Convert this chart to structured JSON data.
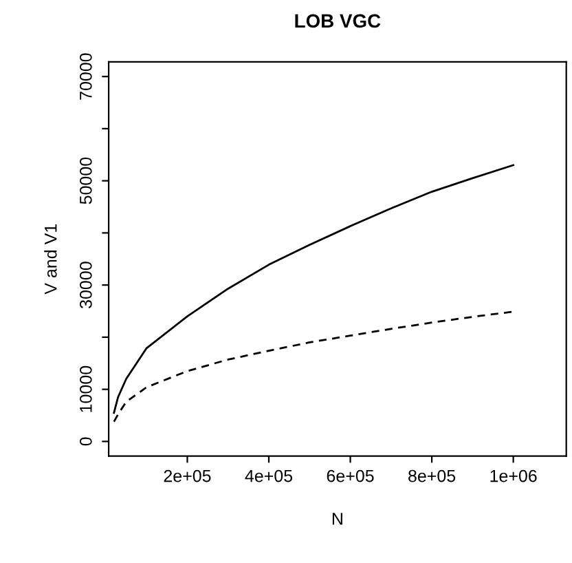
{
  "chart_data": {
    "type": "line",
    "title": "LOB VGC",
    "xlabel": "N",
    "ylabel": "V and V1",
    "xlim": [
      7000,
      1130000
    ],
    "ylim": [
      -2800,
      72800
    ],
    "xticks": [
      {
        "value": 200000,
        "label": "2e+05"
      },
      {
        "value": 400000,
        "label": "4e+05"
      },
      {
        "value": 600000,
        "label": "6e+05"
      },
      {
        "value": 800000,
        "label": "8e+05"
      },
      {
        "value": 1000000,
        "label": "1e+06"
      }
    ],
    "yticks": [
      0,
      10000,
      {
        "value": 20000,
        "label": null
      },
      30000,
      {
        "value": 40000,
        "label": null
      },
      50000,
      {
        "value": 60000,
        "label": null
      },
      70000
    ],
    "grid": false,
    "legend": false,
    "series": [
      {
        "color": "#000000",
        "line_style": "solid",
        "x": [
          20000,
          30000,
          50000,
          100000,
          200000,
          300000,
          400000,
          500000,
          600000,
          700000,
          800000,
          900000,
          1000000
        ],
        "values": [
          5500,
          8500,
          12000,
          17900,
          24000,
          29300,
          33900,
          37700,
          41300,
          44700,
          47900,
          50500,
          53000
        ]
      },
      {
        "color": "#000000",
        "line_style": "dashed",
        "x": [
          20000,
          30000,
          50000,
          100000,
          200000,
          300000,
          400000,
          500000,
          600000,
          700000,
          800000,
          900000,
          1000000
        ],
        "values": [
          3800,
          5200,
          7600,
          10400,
          13500,
          15700,
          17400,
          19000,
          20300,
          21600,
          22800,
          23900,
          24900
        ]
      }
    ]
  }
}
